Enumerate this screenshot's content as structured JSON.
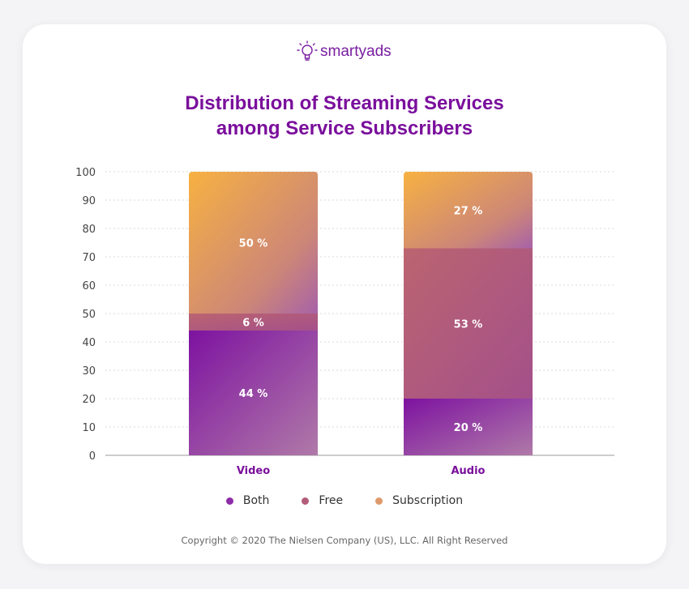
{
  "logo": {
    "text": "smartyads"
  },
  "chart_data": {
    "type": "bar",
    "stacked": true,
    "title": "Distribution of Streaming Services among Service Subscribers",
    "title_lines": [
      "Distribution of Streaming Services",
      "among Service Subscribers"
    ],
    "categories": [
      "Video",
      "Audio"
    ],
    "series": [
      {
        "name": "Both",
        "values": [
          44,
          20
        ],
        "labels": [
          "44 %",
          "20 %"
        ],
        "color": "#8e2ba8"
      },
      {
        "name": "Free",
        "values": [
          6,
          53
        ],
        "labels": [
          "6 %",
          "53 %"
        ],
        "color": "#b35c78"
      },
      {
        "name": "Subscription",
        "values": [
          50,
          27
        ],
        "labels": [
          "50 %",
          "27 %"
        ],
        "color": "#e0996a"
      }
    ],
    "ylim": [
      0,
      100
    ],
    "yticks": [
      "0",
      "10",
      "20",
      "30",
      "40",
      "50",
      "60",
      "70",
      "80",
      "90",
      "100"
    ],
    "grid": true,
    "legend": "bottom"
  },
  "copyright": "Copyright © 2020 The Nielsen Company (US), LLC. All Right Reserved"
}
